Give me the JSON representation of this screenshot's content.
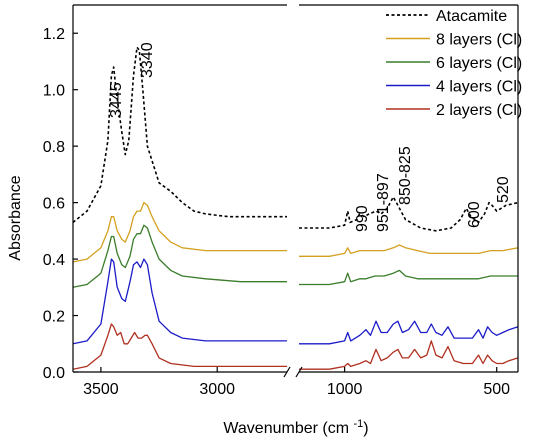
{
  "chart_data": {
    "type": "line",
    "xlabel": "Wavenumber (cm⁻¹)",
    "ylabel": "Absorbance",
    "x_axis": {
      "reversed": true,
      "broken": true,
      "segment_left": [
        3620,
        2700
      ],
      "segment_right": [
        1150,
        430
      ]
    },
    "ylim": [
      0,
      1.3
    ],
    "x_ticks": [
      "3500",
      "3000",
      "1000",
      "500"
    ],
    "y_ticks": [
      "0.0",
      "0.2",
      "0.4",
      "0.6",
      "0.8",
      "1.0",
      "1.2"
    ],
    "legend_position": "top-right",
    "annotations": [
      "3445",
      "3340",
      "990",
      "951-897",
      "850-825",
      "600",
      "520"
    ],
    "series": [
      {
        "name": "Atacamite",
        "color": "#000000",
        "dash": true,
        "points_left": [
          [
            3620,
            0.53
          ],
          [
            3560,
            0.57
          ],
          [
            3500,
            0.66
          ],
          [
            3470,
            0.82
          ],
          [
            3455,
            1.05
          ],
          [
            3445,
            1.08
          ],
          [
            3435,
            1.0
          ],
          [
            3410,
            0.85
          ],
          [
            3395,
            0.77
          ],
          [
            3380,
            0.82
          ],
          [
            3360,
            1.05
          ],
          [
            3345,
            1.15
          ],
          [
            3335,
            1.14
          ],
          [
            3320,
            1.0
          ],
          [
            3300,
            0.8
          ],
          [
            3250,
            0.67
          ],
          [
            3200,
            0.64
          ],
          [
            3150,
            0.6
          ],
          [
            3100,
            0.57
          ],
          [
            3050,
            0.56
          ],
          [
            2950,
            0.55
          ],
          [
            2800,
            0.55
          ],
          [
            2700,
            0.55
          ]
        ],
        "points_right": [
          [
            1150,
            0.51
          ],
          [
            1050,
            0.51
          ],
          [
            1000,
            0.52
          ],
          [
            990,
            0.57
          ],
          [
            982,
            0.53
          ],
          [
            960,
            0.54
          ],
          [
            951,
            0.56
          ],
          [
            935,
            0.55
          ],
          [
            920,
            0.56
          ],
          [
            897,
            0.57
          ],
          [
            880,
            0.56
          ],
          [
            860,
            0.58
          ],
          [
            840,
            0.62
          ],
          [
            825,
            0.59
          ],
          [
            800,
            0.54
          ],
          [
            750,
            0.51
          ],
          [
            700,
            0.5
          ],
          [
            650,
            0.51
          ],
          [
            620,
            0.54
          ],
          [
            600,
            0.58
          ],
          [
            585,
            0.55
          ],
          [
            560,
            0.53
          ],
          [
            540,
            0.56
          ],
          [
            525,
            0.6
          ],
          [
            515,
            0.59
          ],
          [
            500,
            0.57
          ],
          [
            470,
            0.59
          ],
          [
            430,
            0.6
          ]
        ]
      },
      {
        "name": "8 layers (Cl)",
        "color": "#d4a020",
        "dash": false,
        "points_left": [
          [
            3620,
            0.39
          ],
          [
            3560,
            0.4
          ],
          [
            3500,
            0.44
          ],
          [
            3470,
            0.5
          ],
          [
            3455,
            0.55
          ],
          [
            3445,
            0.55
          ],
          [
            3430,
            0.5
          ],
          [
            3410,
            0.47
          ],
          [
            3395,
            0.46
          ],
          [
            3375,
            0.5
          ],
          [
            3360,
            0.55
          ],
          [
            3345,
            0.57
          ],
          [
            3330,
            0.57
          ],
          [
            3315,
            0.6
          ],
          [
            3300,
            0.59
          ],
          [
            3280,
            0.55
          ],
          [
            3250,
            0.5
          ],
          [
            3200,
            0.46
          ],
          [
            3150,
            0.44
          ],
          [
            3050,
            0.43
          ],
          [
            2900,
            0.43
          ],
          [
            2700,
            0.43
          ]
        ],
        "points_right": [
          [
            1150,
            0.41
          ],
          [
            1050,
            0.41
          ],
          [
            1000,
            0.42
          ],
          [
            990,
            0.44
          ],
          [
            980,
            0.42
          ],
          [
            950,
            0.43
          ],
          [
            930,
            0.43
          ],
          [
            900,
            0.43
          ],
          [
            870,
            0.43
          ],
          [
            840,
            0.44
          ],
          [
            820,
            0.45
          ],
          [
            800,
            0.44
          ],
          [
            760,
            0.43
          ],
          [
            720,
            0.42
          ],
          [
            680,
            0.42
          ],
          [
            640,
            0.42
          ],
          [
            600,
            0.42
          ],
          [
            560,
            0.42
          ],
          [
            520,
            0.43
          ],
          [
            480,
            0.43
          ],
          [
            430,
            0.44
          ]
        ]
      },
      {
        "name": "6 layers (Cl)",
        "color": "#3a7d2a",
        "dash": false,
        "points_left": [
          [
            3620,
            0.3
          ],
          [
            3560,
            0.31
          ],
          [
            3500,
            0.35
          ],
          [
            3470,
            0.43
          ],
          [
            3455,
            0.48
          ],
          [
            3445,
            0.48
          ],
          [
            3430,
            0.42
          ],
          [
            3410,
            0.38
          ],
          [
            3395,
            0.37
          ],
          [
            3375,
            0.41
          ],
          [
            3360,
            0.47
          ],
          [
            3345,
            0.49
          ],
          [
            3330,
            0.49
          ],
          [
            3315,
            0.52
          ],
          [
            3300,
            0.51
          ],
          [
            3280,
            0.46
          ],
          [
            3250,
            0.4
          ],
          [
            3200,
            0.36
          ],
          [
            3150,
            0.34
          ],
          [
            3050,
            0.33
          ],
          [
            2900,
            0.32
          ],
          [
            2700,
            0.32
          ]
        ],
        "points_right": [
          [
            1150,
            0.31
          ],
          [
            1050,
            0.31
          ],
          [
            1000,
            0.32
          ],
          [
            990,
            0.35
          ],
          [
            980,
            0.32
          ],
          [
            950,
            0.33
          ],
          [
            930,
            0.33
          ],
          [
            900,
            0.34
          ],
          [
            870,
            0.34
          ],
          [
            840,
            0.35
          ],
          [
            820,
            0.36
          ],
          [
            800,
            0.34
          ],
          [
            760,
            0.33
          ],
          [
            720,
            0.33
          ],
          [
            680,
            0.33
          ],
          [
            640,
            0.33
          ],
          [
            600,
            0.33
          ],
          [
            560,
            0.33
          ],
          [
            520,
            0.34
          ],
          [
            480,
            0.34
          ],
          [
            430,
            0.34
          ]
        ]
      },
      {
        "name": "4 layers (Cl)",
        "color": "#1c1cc8",
        "dash": false,
        "points_left": [
          [
            3620,
            0.1
          ],
          [
            3560,
            0.11
          ],
          [
            3500,
            0.17
          ],
          [
            3470,
            0.32
          ],
          [
            3455,
            0.4
          ],
          [
            3445,
            0.39
          ],
          [
            3430,
            0.3
          ],
          [
            3410,
            0.26
          ],
          [
            3395,
            0.25
          ],
          [
            3375,
            0.32
          ],
          [
            3360,
            0.38
          ],
          [
            3345,
            0.39
          ],
          [
            3330,
            0.37
          ],
          [
            3315,
            0.4
          ],
          [
            3300,
            0.38
          ],
          [
            3280,
            0.28
          ],
          [
            3250,
            0.18
          ],
          [
            3200,
            0.14
          ],
          [
            3150,
            0.12
          ],
          [
            3050,
            0.11
          ],
          [
            2900,
            0.11
          ],
          [
            2700,
            0.11
          ]
        ],
        "points_right": [
          [
            1150,
            0.1
          ],
          [
            1050,
            0.1
          ],
          [
            1000,
            0.11
          ],
          [
            990,
            0.14
          ],
          [
            980,
            0.11
          ],
          [
            950,
            0.13
          ],
          [
            930,
            0.15
          ],
          [
            915,
            0.13
          ],
          [
            897,
            0.18
          ],
          [
            880,
            0.14
          ],
          [
            860,
            0.14
          ],
          [
            840,
            0.17
          ],
          [
            825,
            0.18
          ],
          [
            810,
            0.14
          ],
          [
            790,
            0.15
          ],
          [
            770,
            0.18
          ],
          [
            750,
            0.14
          ],
          [
            730,
            0.14
          ],
          [
            715,
            0.17
          ],
          [
            700,
            0.14
          ],
          [
            680,
            0.13
          ],
          [
            660,
            0.16
          ],
          [
            640,
            0.12
          ],
          [
            610,
            0.12
          ],
          [
            580,
            0.12
          ],
          [
            560,
            0.15
          ],
          [
            545,
            0.12
          ],
          [
            530,
            0.16
          ],
          [
            515,
            0.14
          ],
          [
            500,
            0.13
          ],
          [
            480,
            0.14
          ],
          [
            460,
            0.15
          ],
          [
            430,
            0.16
          ]
        ]
      },
      {
        "name": "2 layers (Cl)",
        "color": "#b03020",
        "dash": false,
        "points_left": [
          [
            3620,
            0.01
          ],
          [
            3560,
            0.02
          ],
          [
            3500,
            0.06
          ],
          [
            3470,
            0.13
          ],
          [
            3455,
            0.17
          ],
          [
            3445,
            0.16
          ],
          [
            3430,
            0.13
          ],
          [
            3415,
            0.14
          ],
          [
            3400,
            0.1
          ],
          [
            3385,
            0.1
          ],
          [
            3370,
            0.12
          ],
          [
            3355,
            0.14
          ],
          [
            3340,
            0.12
          ],
          [
            3325,
            0.12
          ],
          [
            3310,
            0.13
          ],
          [
            3300,
            0.13
          ],
          [
            3280,
            0.1
          ],
          [
            3250,
            0.05
          ],
          [
            3200,
            0.03
          ],
          [
            3100,
            0.02
          ],
          [
            2900,
            0.02
          ],
          [
            2700,
            0.02
          ]
        ],
        "points_right": [
          [
            1150,
            0.01
          ],
          [
            1050,
            0.01
          ],
          [
            1000,
            0.02
          ],
          [
            990,
            0.03
          ],
          [
            980,
            0.02
          ],
          [
            950,
            0.03
          ],
          [
            930,
            0.04
          ],
          [
            915,
            0.03
          ],
          [
            897,
            0.08
          ],
          [
            880,
            0.04
          ],
          [
            860,
            0.05
          ],
          [
            840,
            0.07
          ],
          [
            825,
            0.08
          ],
          [
            810,
            0.05
          ],
          [
            790,
            0.05
          ],
          [
            770,
            0.08
          ],
          [
            750,
            0.05
          ],
          [
            730,
            0.06
          ],
          [
            715,
            0.11
          ],
          [
            700,
            0.06
          ],
          [
            680,
            0.05
          ],
          [
            660,
            0.09
          ],
          [
            640,
            0.04
          ],
          [
            610,
            0.03
          ],
          [
            580,
            0.03
          ],
          [
            560,
            0.06
          ],
          [
            545,
            0.03
          ],
          [
            530,
            0.06
          ],
          [
            515,
            0.04
          ],
          [
            500,
            0.03
          ],
          [
            480,
            0.03
          ],
          [
            460,
            0.04
          ],
          [
            430,
            0.05
          ]
        ]
      }
    ]
  }
}
